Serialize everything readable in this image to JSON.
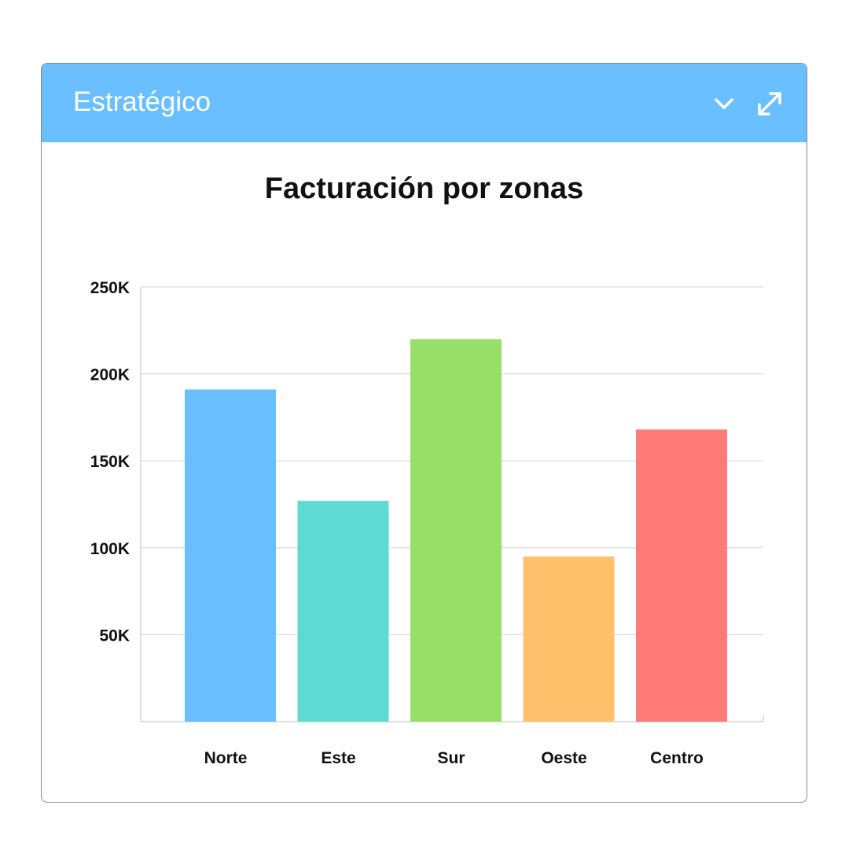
{
  "header": {
    "title": "Estratégico",
    "background_color": "#69bfff",
    "collapse_icon": "chevron-down-icon",
    "expand_icon": "expand-arrows-icon"
  },
  "chart_data": {
    "type": "bar",
    "title": "Facturación por zonas",
    "categories": [
      "Norte",
      "Este",
      "Sur",
      "Oeste",
      "Centro"
    ],
    "values": [
      191000,
      127000,
      220000,
      95000,
      168000
    ],
    "colors": [
      "#69bfff",
      "#5ddbd3",
      "#97df66",
      "#ffc06c",
      "#ff7976"
    ],
    "y_ticks": [
      50000,
      100000,
      150000,
      200000,
      250000
    ],
    "y_tick_labels": [
      "50K",
      "100K",
      "150K",
      "200K",
      "250K"
    ],
    "ylim": [
      0,
      250000
    ],
    "xlabel": "",
    "ylabel": "",
    "grid": true,
    "legend": "none"
  }
}
